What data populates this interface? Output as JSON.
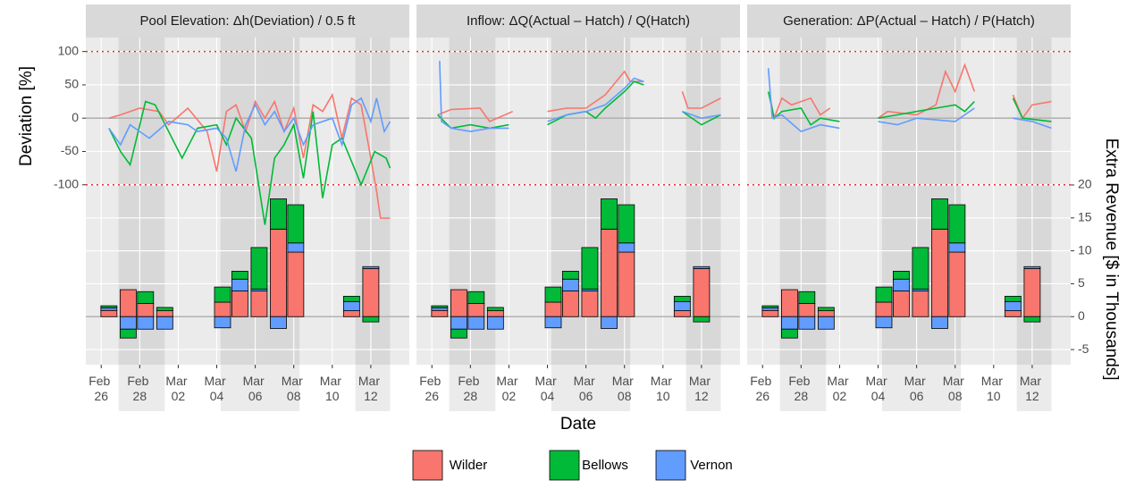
{
  "chart_data": [
    {
      "type": "combo",
      "title": "Pool Elevation: Δh(Deviation) / 0.5 ft",
      "ylabel": "Deviation [%]",
      "ylim": [
        -370,
        121
      ],
      "yticks": [
        100,
        50,
        0,
        -50,
        -100
      ],
      "y2lim": [
        -7.3,
        42.4
      ],
      "xlim": [
        -0.8,
        16
      ],
      "xticks": [
        {
          "value": 0,
          "label": "Feb 26"
        },
        {
          "value": 2,
          "label": "Feb 28"
        },
        {
          "value": 4,
          "label": "Mar 02"
        },
        {
          "value": 6,
          "label": "Mar 04"
        },
        {
          "value": 8,
          "label": "Mar 06"
        },
        {
          "value": 10,
          "label": "Mar 08"
        },
        {
          "value": 12,
          "label": "Mar 10"
        },
        {
          "value": 14,
          "label": "Mar 12"
        }
      ],
      "ref_lines": [
        100,
        -100
      ],
      "ref_line_color": "#E8322B",
      "shaded_spans": [
        [
          0.9,
          3.3
        ],
        [
          6.2,
          10.3
        ],
        [
          13.2,
          15
        ]
      ],
      "bar_x": [
        0.4,
        1.4,
        2.3,
        3.3,
        6.3,
        7.2,
        8.2,
        9.2,
        10.1,
        13.0,
        14.0
      ],
      "series": [
        {
          "name": "Wilder",
          "color": "#F8766D",
          "x": [
            0.4,
            1,
            2,
            3,
            3.5,
            4.5,
            5.5,
            6,
            6.5,
            7,
            7.5,
            8,
            8.5,
            9,
            9.5,
            10,
            10.5,
            11,
            11.5,
            12,
            12.5,
            13,
            13.5,
            14,
            14.3,
            14.5,
            15
          ],
          "values": [
            0,
            5,
            15,
            10,
            -10,
            15,
            -20,
            -80,
            10,
            20,
            -20,
            25,
            0,
            25,
            -20,
            15,
            -60,
            20,
            10,
            35,
            -30,
            30,
            20,
            -60,
            -110,
            -150,
            -150
          ],
          "bar_values": [
            0.95,
            4.1,
            2.0,
            0.9,
            2.2,
            3.9,
            3.9,
            13.3,
            9.8,
            0.9,
            7.3
          ]
        },
        {
          "name": "Bellows",
          "color": "#00BA38",
          "x": [
            0.4,
            1,
            1.5,
            2.3,
            2.8,
            3.5,
            4.2,
            5,
            6,
            6.5,
            7,
            7.8,
            8.5,
            9,
            9.5,
            10,
            10.5,
            11,
            11.5,
            12,
            12.5,
            13.5,
            14.2,
            14.8,
            15
          ],
          "values": [
            -15,
            -50,
            -70,
            25,
            20,
            -20,
            -60,
            -15,
            -10,
            -40,
            0,
            -30,
            -160,
            -60,
            -40,
            -10,
            -90,
            10,
            -120,
            -40,
            -30,
            -100,
            -50,
            -60,
            -75
          ],
          "bar_values": [
            0.3,
            -1.35,
            1.8,
            0.5,
            2.3,
            1.2,
            6.3,
            4.6,
            5.8,
            0.8,
            -0.8
          ]
        },
        {
          "name": "Vernon",
          "color": "#619CFF",
          "x": [
            0.4,
            1,
            1.5,
            2,
            2.5,
            3.5,
            4.5,
            5,
            6,
            6.5,
            7,
            7.5,
            8,
            8.5,
            9,
            9.5,
            10,
            10.5,
            11,
            12,
            12.5,
            13,
            13.5,
            14,
            14.3,
            14.7,
            15
          ],
          "values": [
            -15,
            -40,
            -10,
            -20,
            -30,
            -5,
            -10,
            -20,
            -15,
            -30,
            -80,
            -10,
            20,
            -10,
            10,
            -20,
            0,
            -40,
            -10,
            0,
            -40,
            20,
            30,
            -5,
            30,
            -20,
            -5
          ],
          "bar_values": [
            0.4,
            -1.9,
            -1.9,
            -1.9,
            -1.7,
            1.8,
            0.3,
            -1.8,
            1.4,
            1.4,
            0.3
          ]
        }
      ]
    },
    {
      "type": "combo",
      "title": "Inflow: ΔQ(Actual – Hatch) / Q(Hatch)",
      "xlabel": "Date",
      "ylim": [
        -370,
        121
      ],
      "y2lim": [
        -7.3,
        42.4
      ],
      "xlim": [
        -0.8,
        16
      ],
      "xticks": [
        {
          "value": 0,
          "label": "Feb 26"
        },
        {
          "value": 2,
          "label": "Feb 28"
        },
        {
          "value": 4,
          "label": "Mar 02"
        },
        {
          "value": 6,
          "label": "Mar 04"
        },
        {
          "value": 8,
          "label": "Mar 06"
        },
        {
          "value": 10,
          "label": "Mar 08"
        },
        {
          "value": 12,
          "label": "Mar 10"
        },
        {
          "value": 14,
          "label": "Mar 12"
        }
      ],
      "ref_lines": [
        100,
        -100
      ],
      "ref_line_color": "#E8322B",
      "shaded_spans": [
        [
          0.9,
          3.3
        ],
        [
          6.2,
          10.3
        ],
        [
          13.2,
          15
        ]
      ],
      "bar_x": [
        0.4,
        1.4,
        2.3,
        3.3,
        6.3,
        7.2,
        8.2,
        9.2,
        10.1,
        13.0,
        14.0
      ],
      "series": [
        {
          "color": "#F8766D",
          "x": [
            0.3,
            1,
            2.5,
            3,
            4.2,
            null,
            6,
            7,
            8,
            9,
            10,
            10.3,
            11,
            null,
            13,
            13.3,
            14,
            15
          ],
          "values": [
            5,
            13,
            15,
            -5,
            10,
            null,
            10,
            15,
            15,
            35,
            70,
            55,
            55,
            null,
            40,
            15,
            15,
            30
          ],
          "bar_values": [
            0.95,
            4.1,
            2.0,
            0.9,
            2.2,
            3.9,
            3.9,
            13.3,
            9.8,
            0.9,
            7.3
          ]
        },
        {
          "color": "#00BA38",
          "x": [
            0.3,
            1,
            2,
            3,
            4,
            null,
            6,
            7,
            8,
            8.5,
            9,
            10,
            10.5,
            11,
            null,
            13,
            14,
            15
          ],
          "values": [
            5,
            -15,
            -10,
            -15,
            -10,
            null,
            -10,
            5,
            10,
            0,
            15,
            40,
            55,
            50,
            null,
            10,
            -10,
            5
          ],
          "bar_values": [
            0.3,
            -1.35,
            1.8,
            0.5,
            2.3,
            1.2,
            6.3,
            4.6,
            5.8,
            0.8,
            -0.8
          ]
        },
        {
          "color": "#619CFF",
          "x": [
            0.4,
            0.5,
            1,
            2,
            3,
            4,
            null,
            6,
            7,
            8,
            9,
            10,
            10.5,
            11,
            null,
            13,
            14,
            15
          ],
          "values": [
            86,
            -5,
            -15,
            -20,
            -15,
            -15,
            null,
            -5,
            5,
            10,
            20,
            45,
            60,
            55,
            null,
            10,
            0,
            5
          ],
          "bar_values": [
            0.4,
            -1.9,
            -1.9,
            -1.9,
            -1.7,
            1.8,
            0.3,
            -1.8,
            1.4,
            1.4,
            0.3
          ]
        }
      ]
    },
    {
      "type": "combo",
      "title": "Generation: ΔP(Actual – Hatch) / P(Hatch)",
      "y2label": "Extra Revenue [$ in Thousands]",
      "ylim": [
        -370,
        121
      ],
      "y2lim": [
        -7.3,
        42.4
      ],
      "y2ticks": [
        20,
        15,
        10,
        5,
        0,
        -5
      ],
      "xlim": [
        -0.8,
        16
      ],
      "xticks": [
        {
          "value": 0,
          "label": "Feb 26"
        },
        {
          "value": 2,
          "label": "Feb 28"
        },
        {
          "value": 4,
          "label": "Mar 02"
        },
        {
          "value": 6,
          "label": "Mar 04"
        },
        {
          "value": 8,
          "label": "Mar 06"
        },
        {
          "value": 10,
          "label": "Mar 08"
        },
        {
          "value": 12,
          "label": "Mar 10"
        },
        {
          "value": 14,
          "label": "Mar 12"
        }
      ],
      "ref_lines": [
        100,
        -100
      ],
      "ref_line_color": "#E8322B",
      "shaded_spans": [
        [
          0.9,
          3.3
        ],
        [
          6.2,
          10.3
        ],
        [
          13.2,
          15
        ]
      ],
      "bar_x": [
        0.4,
        1.4,
        2.3,
        3.3,
        6.3,
        7.2,
        8.2,
        9.2,
        10.1,
        13.0,
        14.0
      ],
      "series": [
        {
          "color": "#F8766D",
          "x": [
            0.4,
            0.6,
            1,
            1.5,
            2,
            2.5,
            3,
            3.5,
            null,
            6,
            6.5,
            8,
            9,
            9.5,
            10,
            10.5,
            11,
            null,
            13,
            13.5,
            14,
            15
          ],
          "values": [
            30,
            0,
            30,
            20,
            25,
            30,
            5,
            15,
            null,
            0,
            10,
            5,
            20,
            70,
            40,
            80,
            40,
            null,
            35,
            0,
            20,
            25
          ],
          "bar_values": [
            0.95,
            4.1,
            2.0,
            0.9,
            2.2,
            3.9,
            3.9,
            13.3,
            9.8,
            0.9,
            7.3
          ]
        },
        {
          "color": "#00BA38",
          "x": [
            0.3,
            0.6,
            1,
            2,
            2.5,
            3,
            4,
            null,
            6,
            7,
            8,
            9,
            10,
            10.5,
            11,
            null,
            13,
            13.5,
            15
          ],
          "values": [
            40,
            0,
            10,
            15,
            -10,
            0,
            -5,
            null,
            0,
            5,
            10,
            15,
            20,
            10,
            25,
            null,
            30,
            0,
            -5
          ],
          "bar_values": [
            0.3,
            -1.35,
            1.8,
            0.5,
            2.3,
            1.2,
            6.3,
            4.6,
            5.8,
            0.8,
            -0.8
          ]
        },
        {
          "color": "#619CFF",
          "x": [
            0.3,
            0.5,
            1,
            2,
            3,
            4,
            null,
            6,
            7,
            8,
            10,
            11,
            null,
            13,
            14,
            15
          ],
          "values": [
            75,
            0,
            5,
            -20,
            -10,
            -15,
            null,
            -5,
            -10,
            0,
            -5,
            15,
            null,
            0,
            -5,
            -15
          ],
          "bar_values": [
            0.4,
            -1.9,
            -1.9,
            -1.9,
            -1.7,
            1.8,
            0.3,
            -1.8,
            1.4,
            1.4,
            0.3
          ]
        }
      ]
    }
  ]
}
